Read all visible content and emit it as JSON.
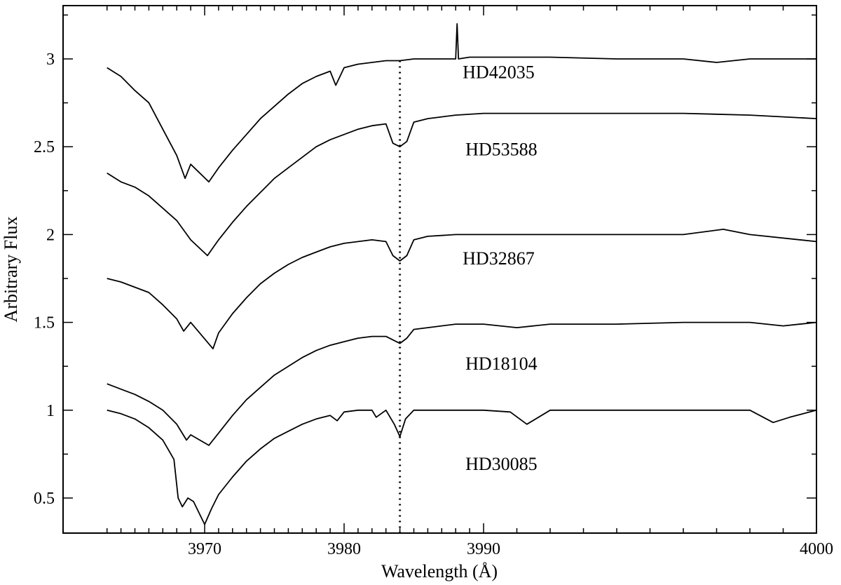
{
  "chart_data": {
    "type": "line",
    "xlabel": "Wavelength (Å)",
    "ylabel": "Arbitrary Flux",
    "xlim": [
      3963,
      4000
    ],
    "ylim": [
      0.3,
      3.3
    ],
    "x_ticks": [
      3970,
      3980,
      3990,
      4000
    ],
    "y_ticks": [
      0.5,
      1,
      1.5,
      2,
      2.5,
      3
    ],
    "x_tick_labels": [
      "3970",
      "3980",
      "3990",
      "4000"
    ],
    "y_tick_labels": [
      "0.5",
      "1",
      "1.5",
      "2",
      "2.5",
      "3"
    ],
    "grid": false,
    "reference_line": {
      "x": 3984,
      "style": "dotted"
    },
    "series": [
      {
        "name": "HD42035",
        "x": [
          3963,
          3964,
          3965,
          3966,
          3967,
          3968,
          3968.6,
          3969,
          3970.3,
          3971,
          3972,
          3973,
          3974,
          3975,
          3976,
          3977,
          3978,
          3979,
          3979.4,
          3980,
          3981,
          3982,
          3983,
          3984,
          3985,
          3986,
          3987,
          3988,
          3988.1,
          3988.2,
          3989,
          3990,
          3992,
          3994,
          3996,
          3997,
          3998,
          4000
        ],
        "y": [
          2.95,
          2.9,
          2.82,
          2.75,
          2.6,
          2.45,
          2.32,
          2.4,
          2.3,
          2.38,
          2.48,
          2.57,
          2.66,
          2.73,
          2.8,
          2.86,
          2.9,
          2.93,
          2.85,
          2.95,
          2.97,
          2.98,
          2.99,
          2.99,
          3.0,
          3.0,
          3.0,
          3.0,
          3.2,
          3.0,
          3.01,
          3.01,
          3.01,
          3.0,
          3.0,
          2.98,
          3.0,
          3.0
        ]
      },
      {
        "name": "HD53588",
        "x": [
          3963,
          3964,
          3965,
          3966,
          3967,
          3968,
          3969,
          3970.2,
          3971,
          3972,
          3973,
          3974,
          3975,
          3976,
          3977,
          3978,
          3979,
          3980,
          3981,
          3982,
          3983,
          3983.5,
          3984,
          3984.5,
          3985,
          3986,
          3987,
          3988,
          3990,
          3992,
          3994,
          3996,
          3998,
          4000
        ],
        "y": [
          2.35,
          2.3,
          2.27,
          2.22,
          2.15,
          2.08,
          1.97,
          1.88,
          1.97,
          2.07,
          2.16,
          2.24,
          2.32,
          2.38,
          2.44,
          2.5,
          2.54,
          2.57,
          2.6,
          2.62,
          2.63,
          2.52,
          2.5,
          2.53,
          2.64,
          2.66,
          2.67,
          2.68,
          2.69,
          2.69,
          2.69,
          2.69,
          2.68,
          2.66
        ]
      },
      {
        "name": "HD32867",
        "x": [
          3963,
          3964,
          3965,
          3966,
          3967,
          3968,
          3968.5,
          3969,
          3970.6,
          3971,
          3972,
          3973,
          3974,
          3975,
          3976,
          3977,
          3978,
          3979,
          3980,
          3981,
          3982,
          3983,
          3983.5,
          3984,
          3984.5,
          3985,
          3986,
          3988,
          3990,
          3992,
          3994,
          3996,
          3997.2,
          3998,
          4000
        ],
        "y": [
          1.75,
          1.73,
          1.7,
          1.67,
          1.6,
          1.52,
          1.45,
          1.5,
          1.35,
          1.44,
          1.55,
          1.64,
          1.72,
          1.78,
          1.83,
          1.87,
          1.9,
          1.93,
          1.95,
          1.96,
          1.97,
          1.96,
          1.88,
          1.85,
          1.88,
          1.97,
          1.99,
          2.0,
          2.0,
          2.0,
          2.0,
          2.0,
          2.03,
          2.0,
          1.96
        ]
      },
      {
        "name": "HD18104",
        "x": [
          3963,
          3964,
          3965,
          3966,
          3967,
          3968,
          3968.7,
          3969,
          3970.3,
          3971,
          3972,
          3973,
          3974,
          3975,
          3976,
          3977,
          3978,
          3979,
          3980,
          3981,
          3982,
          3983,
          3983.5,
          3984,
          3984.5,
          3985,
          3986,
          3988,
          3990,
          3991,
          3992,
          3994,
          3996,
          3998,
          3999,
          4000
        ],
        "y": [
          1.15,
          1.12,
          1.09,
          1.05,
          1.0,
          0.92,
          0.83,
          0.86,
          0.8,
          0.87,
          0.97,
          1.06,
          1.13,
          1.2,
          1.25,
          1.3,
          1.34,
          1.37,
          1.39,
          1.41,
          1.42,
          1.42,
          1.4,
          1.38,
          1.41,
          1.46,
          1.47,
          1.49,
          1.49,
          1.47,
          1.49,
          1.49,
          1.5,
          1.5,
          1.48,
          1.5
        ]
      },
      {
        "name": "HD30085",
        "x": [
          3963,
          3964,
          3965,
          3966,
          3967,
          3967.8,
          3968.1,
          3968.4,
          3968.8,
          3969.2,
          3970,
          3970.5,
          3971,
          3972,
          3973,
          3974,
          3975,
          3976,
          3977,
          3978,
          3979,
          3979.5,
          3980,
          3981,
          3982,
          3982.3,
          3983,
          3983.6,
          3984,
          3984.4,
          3985,
          3986,
          3988,
          3990,
          3990.8,
          3991.3,
          3992,
          3994,
          3996,
          3998,
          3998.7,
          3999.2,
          4000
        ],
        "y": [
          1.0,
          0.98,
          0.95,
          0.9,
          0.83,
          0.72,
          0.5,
          0.45,
          0.5,
          0.48,
          0.35,
          0.44,
          0.52,
          0.62,
          0.71,
          0.78,
          0.84,
          0.88,
          0.92,
          0.95,
          0.97,
          0.94,
          0.99,
          1.0,
          1.0,
          0.96,
          1.0,
          0.92,
          0.85,
          0.95,
          1.0,
          1.0,
          1.0,
          1.0,
          0.99,
          0.92,
          1.0,
          1.0,
          1.0,
          1.0,
          0.93,
          0.96,
          1.0
        ]
      }
    ],
    "series_labels": [
      {
        "text": "HD42035",
        "x": 3988.5,
        "y": 2.89
      },
      {
        "text": "HD53588",
        "x": 3988.7,
        "y": 2.45
      },
      {
        "text": "HD32867",
        "x": 3988.5,
        "y": 1.83
      },
      {
        "text": "HD18104",
        "x": 3988.7,
        "y": 1.23
      },
      {
        "text": "HD30085",
        "x": 3988.7,
        "y": 0.66
      }
    ]
  }
}
